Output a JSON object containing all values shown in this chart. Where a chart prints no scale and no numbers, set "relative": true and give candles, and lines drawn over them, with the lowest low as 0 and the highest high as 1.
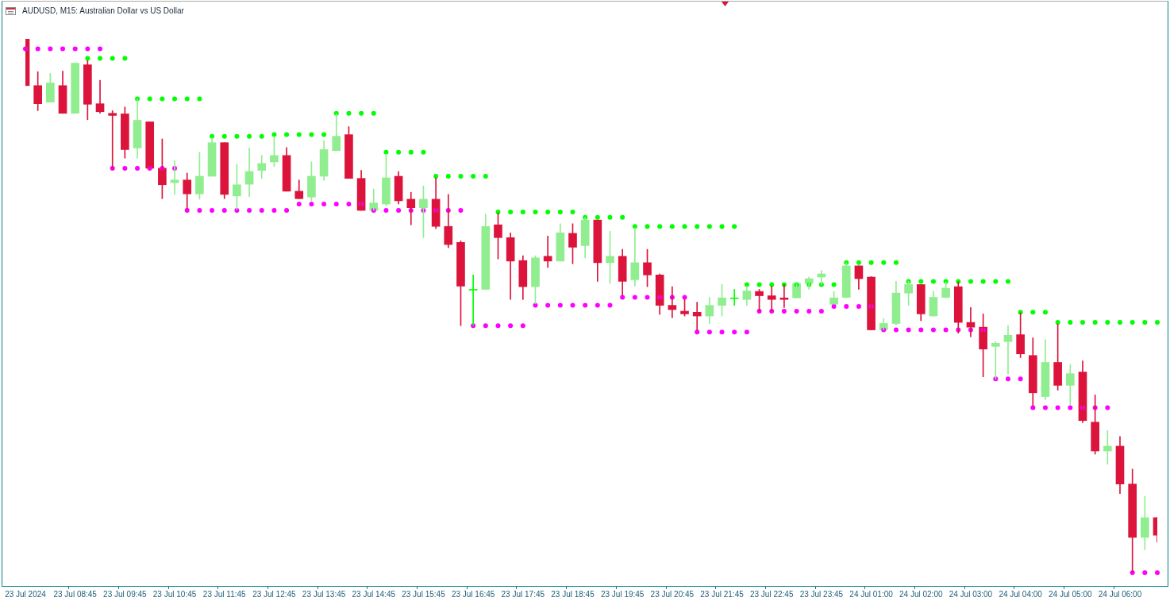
{
  "chart_data": {
    "type": "candlestick",
    "title": "AUDUSD, M15: Australian Dollar vs US Dollar",
    "relative": true,
    "marker": "circle",
    "categories": [
      "23 Jul 2024",
      null,
      null,
      null,
      "23 Jul 08:45",
      null,
      null,
      null,
      "23 Jul 09:45",
      null,
      null,
      null,
      "23 Jul 10:45",
      null,
      null,
      null,
      "23 Jul 11:45",
      null,
      null,
      null,
      "23 Jul 12:45",
      null,
      null,
      null,
      "23 Jul 13:45",
      null,
      null,
      null,
      "23 Jul 14:45",
      null,
      null,
      null,
      "23 Jul 15:45",
      null,
      null,
      null,
      "23 Jul 16:45",
      null,
      null,
      null,
      "23 Jul 17:45",
      null,
      null,
      null,
      "23 Jul 18:45",
      null,
      null,
      null,
      "23 Jul 19:45",
      null,
      null,
      null,
      "23 Jul 20:45",
      null,
      null,
      null,
      "23 Jul 21:45",
      null,
      null,
      null,
      "23 Jul 22:45",
      null,
      null,
      null,
      "23 Jul 23:45",
      null,
      null,
      null,
      "24 Jul 01:00",
      null,
      null,
      null,
      "24 Jul 02:00",
      null,
      null,
      null,
      "24 Jul 03:00",
      null,
      null,
      null,
      "24 Jul 04:00",
      null,
      null,
      null,
      "24 Jul 05:00",
      null,
      null,
      null,
      "24 Jul 06:00",
      null,
      null,
      null
    ],
    "ohlc": [
      [
        1,
        1,
        0.913,
        0.913
      ],
      [
        0.913,
        0.939,
        0.866,
        0.879
      ],
      [
        0.882,
        0.936,
        0.882,
        0.918
      ],
      [
        0.913,
        0.94,
        0.861,
        0.861
      ],
      [
        0.861,
        0.955,
        0.861,
        0.955
      ],
      [
        0.952,
        0.96,
        0.849,
        0.878
      ],
      [
        0.879,
        0.923,
        0.861,
        0.864
      ],
      [
        0.861,
        0.866,
        0.758,
        0.857
      ],
      [
        0.86,
        0.873,
        0.777,
        0.793
      ],
      [
        0.796,
        0.888,
        0.777,
        0.848
      ],
      [
        0.845,
        0.845,
        0.758,
        0.758
      ],
      [
        0.758,
        0.813,
        0.701,
        0.727
      ],
      [
        0.731,
        0.772,
        0.709,
        0.736
      ],
      [
        0.736,
        0.749,
        0.681,
        0.71
      ],
      [
        0.71,
        0.788,
        0.7,
        0.743
      ],
      [
        0.743,
        0.815,
        0.743,
        0.806
      ],
      [
        0.806,
        0.806,
        0.701,
        0.709
      ],
      [
        0.706,
        0.766,
        0.681,
        0.727
      ],
      [
        0.728,
        0.796,
        0.705,
        0.752
      ],
      [
        0.754,
        0.782,
        0.739,
        0.767
      ],
      [
        0.77,
        0.818,
        0.761,
        0.782
      ],
      [
        0.782,
        0.797,
        0.715,
        0.715
      ],
      [
        0.715,
        0.736,
        0.701,
        0.701
      ],
      [
        0.704,
        0.77,
        0.697,
        0.743
      ],
      [
        0.743,
        0.81,
        0.735,
        0.793
      ],
      [
        0.791,
        0.86,
        0.791,
        0.818
      ],
      [
        0.821,
        0.836,
        0.739,
        0.739
      ],
      [
        0.739,
        0.754,
        0.679,
        0.679
      ],
      [
        0.679,
        0.719,
        0.679,
        0.693
      ],
      [
        0.691,
        0.785,
        0.688,
        0.74
      ],
      [
        0.743,
        0.752,
        0.691,
        0.697
      ],
      [
        0.7,
        0.713,
        0.652,
        0.684
      ],
      [
        0.684,
        0.725,
        0.628,
        0.7
      ],
      [
        0.7,
        0.74,
        0.645,
        0.649
      ],
      [
        0.649,
        0.709,
        0.609,
        0.615
      ],
      [
        0.619,
        0.622,
        0.463,
        0.537
      ],
      [
        0.531,
        0.558,
        0.463,
        0.531
      ],
      [
        0.531,
        0.672,
        0.531,
        0.649
      ],
      [
        0.652,
        0.674,
        0.588,
        0.628
      ],
      [
        0.628,
        0.637,
        0.512,
        0.584
      ],
      [
        0.585,
        0.594,
        0.512,
        0.536
      ],
      [
        0.536,
        0.594,
        0.504,
        0.59
      ],
      [
        0.593,
        0.631,
        0.572,
        0.584
      ],
      [
        0.584,
        0.654,
        0.584,
        0.637
      ],
      [
        0.636,
        0.654,
        0.579,
        0.61
      ],
      [
        0.613,
        0.666,
        0.59,
        0.661
      ],
      [
        0.661,
        0.661,
        0.546,
        0.581
      ],
      [
        0.581,
        0.64,
        0.542,
        0.593
      ],
      [
        0.593,
        0.606,
        0.519,
        0.546
      ],
      [
        0.549,
        0.646,
        0.537,
        0.581
      ],
      [
        0.581,
        0.606,
        0.536,
        0.558
      ],
      [
        0.558,
        0.56,
        0.484,
        0.501
      ],
      [
        0.501,
        0.536,
        0.478,
        0.493
      ],
      [
        0.49,
        0.513,
        0.481,
        0.485
      ],
      [
        0.488,
        0.507,
        0.454,
        0.481
      ],
      [
        0.481,
        0.516,
        0.467,
        0.501
      ],
      [
        0.501,
        0.54,
        0.481,
        0.515
      ],
      [
        0.515,
        0.531,
        0.501,
        0.515
      ],
      [
        0.512,
        0.537,
        0.501,
        0.528
      ],
      [
        0.527,
        0.531,
        0.49,
        0.519
      ],
      [
        0.519,
        0.537,
        0.49,
        0.512
      ],
      [
        0.515,
        0.54,
        0.497,
        0.512
      ],
      [
        0.515,
        0.542,
        0.515,
        0.542
      ],
      [
        0.542,
        0.554,
        0.531,
        0.551
      ],
      [
        0.554,
        0.566,
        0.54,
        0.56
      ],
      [
        0.503,
        0.527,
        0.503,
        0.515
      ],
      [
        0.516,
        0.581,
        0.515,
        0.575
      ],
      [
        0.575,
        0.575,
        0.531,
        0.551
      ],
      [
        0.554,
        0.555,
        0.455,
        0.455
      ],
      [
        0.455,
        0.476,
        0.455,
        0.467
      ],
      [
        0.467,
        0.546,
        0.464,
        0.524
      ],
      [
        0.524,
        0.546,
        0.501,
        0.54
      ],
      [
        0.54,
        0.54,
        0.472,
        0.485
      ],
      [
        0.481,
        0.528,
        0.481,
        0.516
      ],
      [
        0.516,
        0.545,
        0.515,
        0.533
      ],
      [
        0.536,
        0.545,
        0.449,
        0.469
      ],
      [
        0.469,
        0.497,
        0.442,
        0.46
      ],
      [
        0.46,
        0.485,
        0.367,
        0.419
      ],
      [
        0.424,
        0.433,
        0.363,
        0.43
      ],
      [
        0.433,
        0.463,
        0.372,
        0.445
      ],
      [
        0.446,
        0.487,
        0.403,
        0.41
      ],
      [
        0.407,
        0.44,
        0.312,
        0.337
      ],
      [
        0.33,
        0.437,
        0.324,
        0.394
      ],
      [
        0.394,
        0.466,
        0.342,
        0.351
      ],
      [
        0.351,
        0.39,
        0.315,
        0.373
      ],
      [
        0.376,
        0.397,
        0.281,
        0.285
      ],
      [
        0.282,
        0.333,
        0.222,
        0.228
      ],
      [
        0.228,
        0.266,
        0.203,
        0.237
      ],
      [
        0.237,
        0.255,
        0.148,
        0.166
      ],
      [
        0.166,
        0.194,
        0,
        0.066
      ],
      [
        0.066,
        0.143,
        0.043,
        0.103
      ],
      [
        0.103,
        0.104,
        0.057,
        0.07
      ]
    ],
    "colors": [
      "#dc143c",
      "#dc143c",
      "#90ee90",
      "#dc143c",
      "#90ee90",
      "#dc143c",
      "#dc143c",
      "#dc143c",
      "#dc143c",
      "#90ee90",
      "#dc143c",
      "#dc143c",
      "#90ee90",
      "#dc143c",
      "#90ee90",
      "#90ee90",
      "#dc143c",
      "#90ee90",
      "#90ee90",
      "#90ee90",
      "#90ee90",
      "#dc143c",
      "#dc143c",
      "#90ee90",
      "#90ee90",
      "#90ee90",
      "#dc143c",
      "#dc143c",
      "#90ee90",
      "#90ee90",
      "#dc143c",
      "#dc143c",
      "#90ee90",
      "#dc143c",
      "#dc143c",
      "#dc143c",
      "#00ff00",
      "#90ee90",
      "#dc143c",
      "#dc143c",
      "#dc143c",
      "#90ee90",
      "#dc143c",
      "#90ee90",
      "#dc143c",
      "#90ee90",
      "#dc143c",
      "#90ee90",
      "#dc143c",
      "#90ee90",
      "#dc143c",
      "#dc143c",
      "#dc143c",
      "#dc143c",
      "#dc143c",
      "#90ee90",
      "#90ee90",
      "#00ff00",
      "#90ee90",
      "#dc143c",
      "#dc143c",
      "#dc143c",
      "#90ee90",
      "#90ee90",
      "#90ee90",
      "#90ee90",
      "#90ee90",
      "#dc143c",
      "#dc143c",
      "#90ee90",
      "#90ee90",
      "#90ee90",
      "#dc143c",
      "#90ee90",
      "#90ee90",
      "#dc143c",
      "#dc143c",
      "#dc143c",
      "#90ee90",
      "#90ee90",
      "#dc143c",
      "#dc143c",
      "#90ee90",
      "#dc143c",
      "#90ee90",
      "#dc143c",
      "#dc143c",
      "#90ee90",
      "#dc143c",
      "#dc143c",
      "#90ee90",
      "#dc143c"
    ],
    "series": [
      {
        "type": "scatter",
        "color": "#00ff00",
        "values": [
          null,
          null,
          null,
          null,
          null,
          0.964,
          0.964,
          0.964,
          0.964,
          0.888,
          0.888,
          0.888,
          0.888,
          0.888,
          0.888,
          0.818,
          0.818,
          0.818,
          0.818,
          0.818,
          0.821,
          0.821,
          0.821,
          0.821,
          0.821,
          0.861,
          0.861,
          0.861,
          0.861,
          0.788,
          0.788,
          0.788,
          0.788,
          0.743,
          0.743,
          0.743,
          0.743,
          0.743,
          0.676,
          0.676,
          0.676,
          0.676,
          0.676,
          0.676,
          0.676,
          0.666,
          0.666,
          0.666,
          0.666,
          0.649,
          0.649,
          0.649,
          0.649,
          0.649,
          0.649,
          0.649,
          0.649,
          0.649,
          0.54,
          0.54,
          0.54,
          0.54,
          0.54,
          0.54,
          0.54,
          0.54,
          0.581,
          0.581,
          0.581,
          0.581,
          0.581,
          0.546,
          0.546,
          0.546,
          0.546,
          0.546,
          0.546,
          0.546,
          0.546,
          0.546,
          0.488,
          0.488,
          0.488,
          0.469,
          0.469,
          0.469,
          0.469,
          0.469,
          0.469,
          0.469,
          0.469,
          0.469
        ]
      },
      {
        "type": "scatter",
        "color": "#ff00ff",
        "values": [
          0.982,
          0.982,
          0.982,
          0.982,
          0.982,
          0.982,
          0.982,
          0.758,
          0.758,
          0.758,
          0.758,
          0.758,
          0.758,
          0.679,
          0.679,
          0.679,
          0.679,
          0.679,
          0.679,
          0.679,
          0.679,
          0.679,
          0.691,
          0.691,
          0.691,
          0.691,
          0.691,
          0.691,
          0.679,
          0.679,
          0.679,
          0.679,
          0.679,
          0.679,
          0.679,
          0.679,
          0.463,
          0.463,
          0.463,
          0.463,
          0.463,
          0.501,
          0.501,
          0.501,
          0.501,
          0.501,
          0.501,
          0.501,
          0.516,
          0.516,
          0.516,
          0.516,
          0.516,
          0.516,
          0.451,
          0.451,
          0.451,
          0.451,
          0.451,
          0.49,
          0.49,
          0.49,
          0.49,
          0.49,
          0.49,
          0.499,
          0.499,
          0.499,
          0.499,
          0.455,
          0.455,
          0.455,
          0.455,
          0.455,
          0.455,
          0.455,
          0.455,
          0.455,
          0.363,
          0.363,
          0.363,
          0.309,
          0.309,
          0.309,
          0.309,
          0.309,
          0.309,
          0.309,
          null,
          0,
          0,
          0
        ]
      }
    ]
  }
}
